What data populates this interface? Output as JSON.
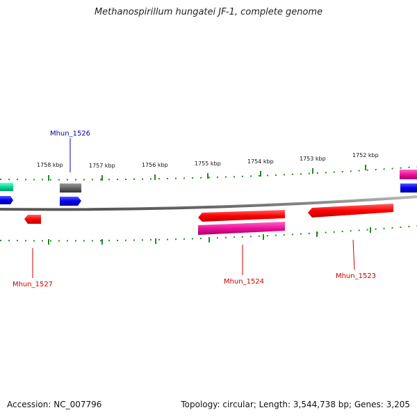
{
  "title": "Methanospirillum hungatei JF-1, complete genome",
  "footer": {
    "accession": "Accession: NC_007796",
    "summary": "Topology: circular; Length: 3,544,738 bp; Genes: 3,205"
  },
  "scale_labels": [
    "1758 kbp",
    "1757 kbp",
    "1756 kbp",
    "1755 kbp",
    "1754 kbp",
    "1753 kbp",
    "1752 kbp"
  ],
  "gene_labels": [
    {
      "name": "Mhun_1526",
      "color": "#0000aa"
    },
    {
      "name": "Mhun_1527",
      "color": "#cc0000"
    },
    {
      "name": "Mhun_1524",
      "color": "#cc0000"
    },
    {
      "name": "Mhun_1523",
      "color": "#cc0000"
    }
  ],
  "colors": {
    "backbone": "#888888",
    "ticks": "#228822",
    "gene_red": "#ff0000",
    "gene_magenta": "#ee2299",
    "gene_blue": "#0000ee",
    "gene_gray": "#666666",
    "gene_green": "#00cc88"
  }
}
